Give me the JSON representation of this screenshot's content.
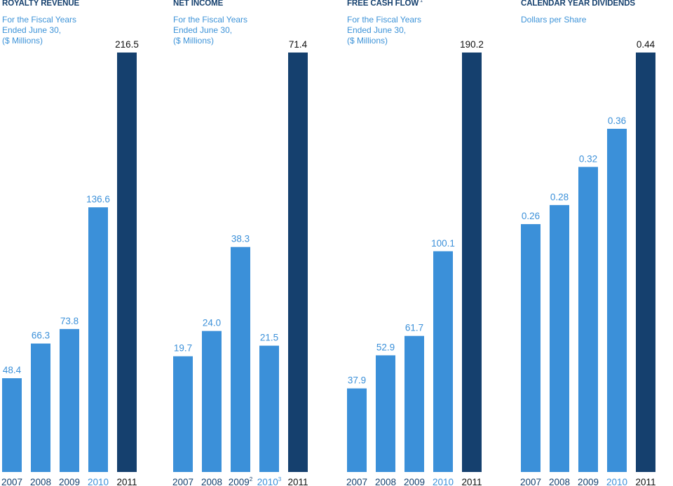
{
  "colors": {
    "bar": "#3b90d9",
    "bar_highlight": "#15406e",
    "label": "#3b90d9",
    "label_highlight": "#15406e",
    "title": "#15406e"
  },
  "chart_data": [
    {
      "type": "bar",
      "title": "ROYALTY REVENUE",
      "title_sup": "",
      "subtitle": [
        "For the Fiscal Years",
        "Ended June 30,",
        "($ Millions)"
      ],
      "categories": [
        "2007",
        "2008",
        "2009",
        "2010",
        "2011"
      ],
      "category_sup": [
        "",
        "",
        "",
        "",
        ""
      ],
      "values": [
        48.4,
        66.3,
        73.8,
        136.6,
        216.5
      ],
      "value_labels": [
        "48.4",
        "66.3",
        "73.8",
        "136.6",
        "216.5"
      ],
      "highlight_index": 4,
      "ylim": [
        0,
        216.5
      ],
      "xlabel": "",
      "ylabel": "",
      "grid": false
    },
    {
      "type": "bar",
      "title": "NET INCOME",
      "title_sup": "",
      "subtitle": [
        "For the Fiscal Years",
        "Ended June 30,",
        "($ Millions)"
      ],
      "categories": [
        "2007",
        "2008",
        "2009",
        "2010",
        "2011"
      ],
      "category_sup": [
        "",
        "",
        "2",
        "3",
        ""
      ],
      "values": [
        19.7,
        24.0,
        38.3,
        21.5,
        71.4
      ],
      "value_labels": [
        "19.7",
        "24.0",
        "38.3",
        "21.5",
        "71.4"
      ],
      "highlight_index": 4,
      "ylim": [
        0,
        71.4
      ],
      "xlabel": "",
      "ylabel": "",
      "grid": false
    },
    {
      "type": "bar",
      "title": "FREE CASH FLOW",
      "title_sup": "1",
      "subtitle": [
        "For the Fiscal Years",
        "Ended June 30,",
        "($ Millions)"
      ],
      "categories": [
        "2007",
        "2008",
        "2009",
        "2010",
        "2011"
      ],
      "category_sup": [
        "",
        "",
        "",
        "",
        ""
      ],
      "values": [
        37.9,
        52.9,
        61.7,
        100.1,
        190.2
      ],
      "value_labels": [
        "37.9",
        "52.9",
        "61.7",
        "100.1",
        "190.2"
      ],
      "highlight_index": 4,
      "ylim": [
        0,
        190.2
      ],
      "xlabel": "",
      "ylabel": "",
      "grid": false
    },
    {
      "type": "bar",
      "title": "CALENDAR YEAR DIVIDENDS",
      "title_sup": "",
      "subtitle": [
        "Dollars per Share"
      ],
      "categories": [
        "2007",
        "2008",
        "2009",
        "2010",
        "2011"
      ],
      "category_sup": [
        "",
        "",
        "",
        "",
        ""
      ],
      "values": [
        0.26,
        0.28,
        0.32,
        0.36,
        0.44
      ],
      "value_labels": [
        "0.26",
        "0.28",
        "0.32",
        "0.36",
        "0.44"
      ],
      "highlight_index": 4,
      "ylim": [
        0,
        0.44
      ],
      "xlabel": "",
      "ylabel": "",
      "grid": false
    }
  ]
}
